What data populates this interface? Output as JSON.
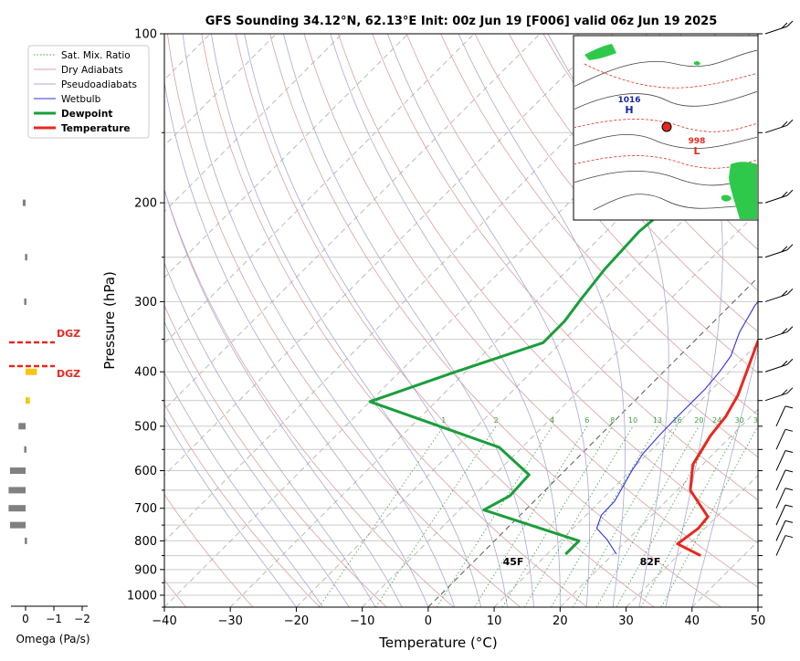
{
  "title": "GFS Sounding 34.12°N, 62.13°E Init: 00z Jun 19 [F006] valid 06z Jun 19 2025",
  "xlabel": "Temperature (°C)",
  "ylabel": "Pressure (hPa)",
  "omega_label": "Omega (Pa/s)",
  "legend": [
    "Sat. Mix. Ratio",
    "Dry Adiabats",
    "Pseudoadiabats",
    "Wetbulb",
    "Dewpoint",
    "Temperature"
  ],
  "colors": {
    "temperature": "#e8281e",
    "dewpoint": "#1a9e3a",
    "wetbulb": "#3333dd",
    "dry_adiabat": "#d9a0a0",
    "pseudoadiabat": "#a8a8d8",
    "mixing_ratio": "#3aa040",
    "dgz": "#e8281e"
  },
  "surface_labels": {
    "dewpoint": "45F",
    "temperature": "82F"
  },
  "dgz_label": "DGZ",
  "map_labels": {
    "high": "1016",
    "high_h": "H",
    "low": "998",
    "low_l": "L"
  },
  "chart_data": {
    "type": "line",
    "title": "GFS Sounding 34.12°N, 62.13°E Init: 00z Jun 19 [F006] valid 06z Jun 19 2025",
    "xlabel": "Temperature (°C)",
    "ylabel": "Pressure (hPa)",
    "xlim": [
      -40,
      50
    ],
    "ylim": [
      1050,
      100
    ],
    "y_scale": "log",
    "grid": true,
    "legend_position": "top-left",
    "x_ticks": [
      -40,
      -30,
      -20,
      -10,
      0,
      10,
      20,
      30,
      40,
      50
    ],
    "y_ticks": [
      1000,
      900,
      800,
      700,
      600,
      500,
      400,
      300,
      200,
      100
    ],
    "mixing_ratio_labels": [
      "1",
      "2",
      "4",
      "6",
      "8",
      "10",
      "13",
      "16",
      "20",
      "24",
      "30",
      "36"
    ],
    "series": [
      {
        "name": "Temperature",
        "points": [
          [
            33.5,
            850
          ],
          [
            28.2,
            810
          ],
          [
            29,
            760
          ],
          [
            28.7,
            725
          ],
          [
            22,
            650
          ],
          [
            18.5,
            585
          ],
          [
            16.8,
            520
          ],
          [
            16.2,
            480
          ],
          [
            14.8,
            440
          ],
          [
            12.3,
            395
          ],
          [
            9.8,
            355
          ],
          [
            8.4,
            330
          ],
          [
            6.2,
            300
          ],
          [
            4.6,
            270
          ],
          [
            3.6,
            250
          ],
          [
            1.8,
            225
          ],
          [
            0.2,
            205
          ],
          [
            -2.5,
            180
          ],
          [
            -6.5,
            157
          ],
          [
            -8,
            140
          ],
          [
            -9.5,
            120
          ],
          [
            -11,
            100
          ]
        ]
      },
      {
        "name": "Dewpoint",
        "points": [
          [
            12.8,
            845
          ],
          [
            12.8,
            800
          ],
          [
            -6.3,
            705
          ],
          [
            -4.5,
            665
          ],
          [
            -4.8,
            610
          ],
          [
            -13.5,
            545
          ],
          [
            -40,
            452
          ],
          [
            -31.5,
            400
          ],
          [
            -22.7,
            355
          ],
          [
            -22.7,
            325
          ],
          [
            -23.5,
            298
          ],
          [
            -24.5,
            262
          ],
          [
            -25,
            225
          ],
          [
            -24,
            195
          ],
          [
            -20.5,
            160
          ],
          [
            -17.5,
            138
          ],
          [
            -15,
            100
          ]
        ]
      },
      {
        "name": "Wetbulb",
        "points": [
          [
            20.5,
            845
          ],
          [
            16.8,
            795
          ],
          [
            13.6,
            760
          ],
          [
            12.3,
            720
          ],
          [
            12.2,
            680
          ],
          [
            10.2,
            600
          ],
          [
            9.3,
            560
          ],
          [
            9,
            520
          ],
          [
            8.9,
            480
          ],
          [
            8.9,
            430
          ],
          [
            8.5,
            400
          ],
          [
            7.8,
            375
          ],
          [
            5.5,
            340
          ],
          [
            3.8,
            305
          ],
          [
            3.2,
            280
          ],
          [
            1.8,
            250
          ],
          [
            -0.5,
            220
          ],
          [
            -2,
            200
          ],
          [
            -4.5,
            180
          ],
          [
            -6.5,
            157
          ]
        ]
      }
    ],
    "dgz_pressures": [
      355,
      392
    ],
    "omega": [
      {
        "p": 200,
        "value": 0.1,
        "color": "#808080"
      },
      {
        "p": 250,
        "value": 0.02,
        "color": "#808080"
      },
      {
        "p": 300,
        "value": 0.05,
        "color": "#808080"
      },
      {
        "p": 400,
        "value": -0.4,
        "color": "#f5c518"
      },
      {
        "p": 450,
        "value": -0.15,
        "color": "#f5c518"
      },
      {
        "p": 500,
        "value": 0.25,
        "color": "#808080"
      },
      {
        "p": 550,
        "value": 0.05,
        "color": "#808080"
      },
      {
        "p": 600,
        "value": 0.55,
        "color": "#808080"
      },
      {
        "p": 650,
        "value": 0.6,
        "color": "#808080"
      },
      {
        "p": 700,
        "value": 0.6,
        "color": "#808080"
      },
      {
        "p": 750,
        "value": 0.55,
        "color": "#808080"
      },
      {
        "p": 800,
        "value": 0.03,
        "color": "#808080"
      }
    ],
    "omega_xticks": [
      "0",
      "−1",
      "−2"
    ]
  }
}
